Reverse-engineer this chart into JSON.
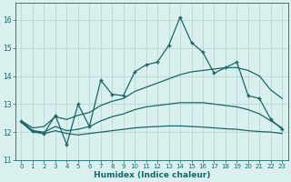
{
  "xlabel": "Humidex (Indice chaleur)",
  "bg_color": "#daf0ee",
  "grid_color": "#b8d8d4",
  "line_color": "#1a6666",
  "xlim": [
    -0.5,
    23.5
  ],
  "ylim": [
    11.0,
    16.6
  ],
  "yticks": [
    11,
    12,
    13,
    14,
    15,
    16
  ],
  "xticks": [
    0,
    1,
    2,
    3,
    4,
    5,
    6,
    7,
    8,
    9,
    10,
    11,
    12,
    13,
    14,
    15,
    16,
    17,
    18,
    19,
    20,
    21,
    22,
    23
  ],
  "main_x": [
    0,
    1,
    2,
    3,
    4,
    5,
    6,
    7,
    8,
    9,
    10,
    11,
    12,
    13,
    14,
    15,
    16,
    17,
    18,
    19,
    20,
    21,
    22,
    23
  ],
  "main_y": [
    12.4,
    12.05,
    11.95,
    12.6,
    11.55,
    13.0,
    12.2,
    13.85,
    13.35,
    13.3,
    14.15,
    14.4,
    14.5,
    15.1,
    16.1,
    15.2,
    14.85,
    14.1,
    14.3,
    14.5,
    13.3,
    13.2,
    12.45,
    12.1
  ],
  "upper_x": [
    0,
    1,
    2,
    3,
    4,
    5,
    6,
    7,
    8,
    9,
    10,
    11,
    12,
    13,
    14,
    15,
    16,
    17,
    18,
    19,
    20,
    21,
    22,
    23
  ],
  "upper_y": [
    12.4,
    12.15,
    12.2,
    12.55,
    12.45,
    12.6,
    12.7,
    12.95,
    13.1,
    13.2,
    13.45,
    13.6,
    13.75,
    13.9,
    14.05,
    14.15,
    14.2,
    14.25,
    14.3,
    14.3,
    14.2,
    14.0,
    13.5,
    13.2
  ],
  "mid_x": [
    0,
    1,
    2,
    3,
    4,
    5,
    6,
    7,
    8,
    9,
    10,
    11,
    12,
    13,
    14,
    15,
    16,
    17,
    18,
    19,
    20,
    21,
    22,
    23
  ],
  "mid_y": [
    12.35,
    12.05,
    12.0,
    12.2,
    12.05,
    12.1,
    12.2,
    12.4,
    12.55,
    12.65,
    12.8,
    12.9,
    12.95,
    13.0,
    13.05,
    13.05,
    13.05,
    13.0,
    12.95,
    12.9,
    12.8,
    12.65,
    12.4,
    12.15
  ],
  "lower_x": [
    0,
    1,
    2,
    3,
    4,
    5,
    6,
    7,
    8,
    9,
    10,
    11,
    12,
    13,
    14,
    15,
    16,
    17,
    18,
    19,
    20,
    21,
    22,
    23
  ],
  "lower_y": [
    12.35,
    12.0,
    11.95,
    12.05,
    11.95,
    11.9,
    11.95,
    12.0,
    12.05,
    12.1,
    12.15,
    12.18,
    12.2,
    12.22,
    12.22,
    12.2,
    12.18,
    12.15,
    12.12,
    12.1,
    12.05,
    12.02,
    12.0,
    11.95
  ]
}
